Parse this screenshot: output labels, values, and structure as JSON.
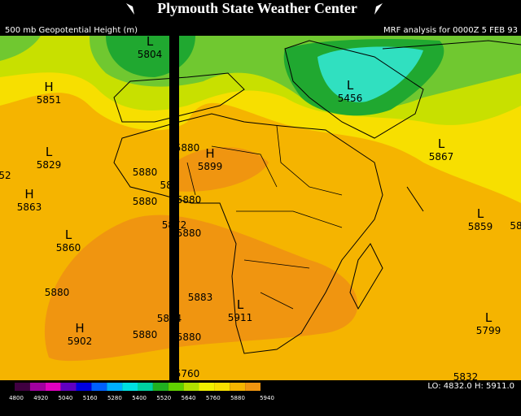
{
  "header": {
    "title": "Plymouth State Weather Center",
    "field": "500 mb Geopotential Height (m)",
    "run": "MRF analysis for 0000Z  5 FEB 93"
  },
  "centers": [
    {
      "symbol": "H",
      "value": "5851"
    },
    {
      "symbol": "L",
      "value": "5829"
    },
    {
      "symbol": "H",
      "value": "5863"
    },
    {
      "symbol": "L",
      "value": "5860"
    },
    {
      "symbol": "H",
      "value": "5902"
    },
    {
      "symbol": "L",
      "value": "5804"
    },
    {
      "symbol": "L",
      "value": "5456"
    },
    {
      "symbol": "H",
      "value": "5899"
    },
    {
      "symbol": "L",
      "value": "5911"
    },
    {
      "symbol": "L",
      "value": "5867"
    },
    {
      "symbol": "L",
      "value": "5859"
    },
    {
      "symbol": "L",
      "value": "5799"
    }
  ],
  "contour_labels": [
    "52",
    "5880",
    "5880",
    "5880",
    "5880",
    "5880",
    "5880",
    "582",
    "5872",
    "5880",
    "5883",
    "5884",
    "5880",
    "5760",
    "58",
    "5832"
  ],
  "legend": {
    "labels": [
      "4800",
      "4920",
      "5040",
      "5160",
      "5280",
      "5400",
      "5520",
      "5640",
      "5760",
      "5880",
      "5940"
    ]
  },
  "footer": {
    "range": "LO: 4832.0  H: 5911.0"
  }
}
